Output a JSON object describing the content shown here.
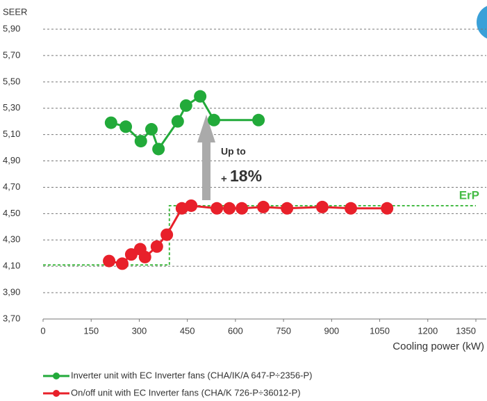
{
  "chart_data": {
    "type": "line",
    "y_label": "SEER",
    "x_label": "Cooling power (kW)",
    "xlim": [
      0,
      1350
    ],
    "ylim": [
      3.7,
      5.9
    ],
    "xticks": [
      0,
      150,
      300,
      450,
      600,
      750,
      900,
      1050,
      1200,
      1350
    ],
    "yticks": [
      {
        "value": 3.7,
        "label": "3,70"
      },
      {
        "value": 3.9,
        "label": "3,90"
      },
      {
        "value": 4.1,
        "label": "4,10"
      },
      {
        "value": 4.3,
        "label": "4,30"
      },
      {
        "value": 4.5,
        "label": "4,50"
      },
      {
        "value": 4.7,
        "label": "4,70"
      },
      {
        "value": 4.9,
        "label": "4,90"
      },
      {
        "value": 5.1,
        "label": "5,10"
      },
      {
        "value": 5.3,
        "label": "5,30"
      },
      {
        "value": 5.5,
        "label": "5,50"
      },
      {
        "value": 5.7,
        "label": "5,70"
      },
      {
        "value": 5.9,
        "label": "5,90"
      }
    ],
    "grid": true,
    "series": [
      {
        "name": "Inverter unit with EC Inverter fans (CHA/IK/A 647-P÷2356-P)",
        "color": "#22aa3a",
        "x": [
          212,
          258,
          305,
          338,
          360,
          420,
          446,
          490,
          533,
          672
        ],
        "values": [
          5.19,
          5.16,
          5.05,
          5.14,
          4.99,
          5.2,
          5.32,
          5.39,
          5.21,
          5.21
        ]
      },
      {
        "name": "On/off unit with EC Inverter fans (CHA/K 726-P÷36012-P)",
        "color": "#e8202a",
        "x": [
          206,
          247,
          275,
          303,
          318,
          355,
          386,
          433,
          462,
          542,
          581,
          620,
          687,
          761,
          871,
          960,
          1073
        ],
        "values": [
          4.14,
          4.12,
          4.19,
          4.23,
          4.17,
          4.25,
          4.34,
          4.54,
          4.56,
          4.54,
          4.54,
          4.54,
          4.55,
          4.54,
          4.55,
          4.54,
          4.54
        ]
      }
    ],
    "erp": {
      "name": "ErP",
      "color": "#44bb44",
      "x": [
        0,
        394,
        394,
        1350
      ],
      "values": [
        4.11,
        4.11,
        4.56,
        4.56
      ]
    },
    "annotations": [
      "Up to",
      "+",
      "18%"
    ]
  }
}
